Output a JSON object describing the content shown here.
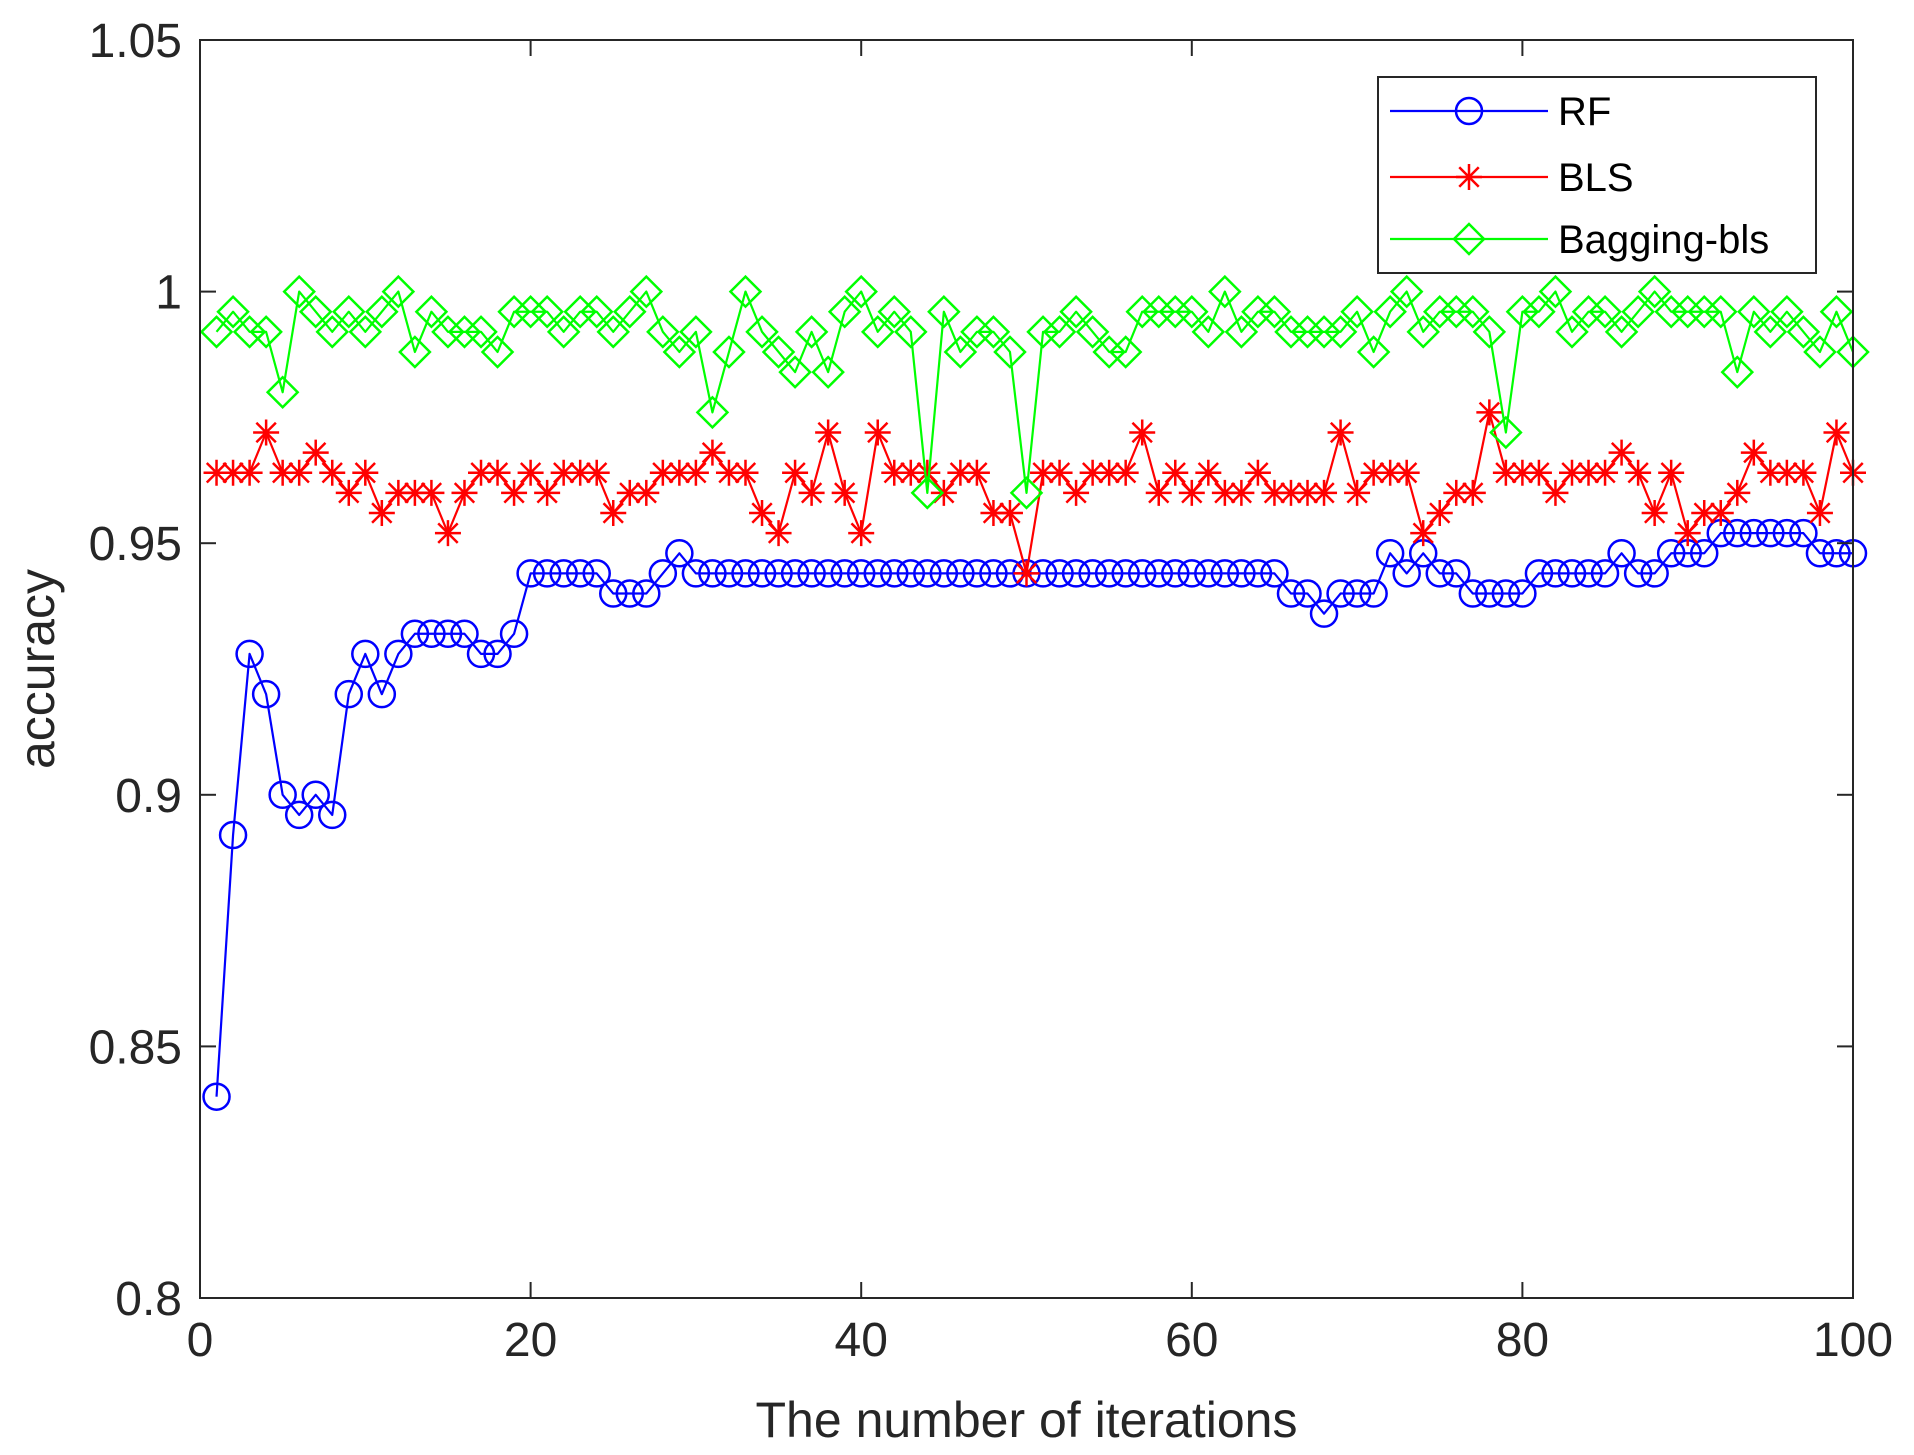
{
  "chart_data": {
    "type": "line",
    "title": "",
    "xlabel": "The number of iterations",
    "ylabel": "accuracy",
    "xlim": [
      0,
      100
    ],
    "ylim": [
      0.8,
      1.05
    ],
    "xticks": [
      0,
      20,
      40,
      60,
      80,
      100
    ],
    "xtick_labels": [
      "0",
      "20",
      "40",
      "60",
      "80",
      "100"
    ],
    "yticks": [
      0.8,
      0.85,
      0.9,
      0.95,
      1.0,
      1.05
    ],
    "ytick_labels": [
      "0.8",
      "0.85",
      "0.9",
      "0.95",
      "1",
      "1.05"
    ],
    "grid": false,
    "legend_position": "top-right",
    "x": [
      1,
      2,
      3,
      4,
      5,
      6,
      7,
      8,
      9,
      10,
      11,
      12,
      13,
      14,
      15,
      16,
      17,
      18,
      19,
      20,
      21,
      22,
      23,
      24,
      25,
      26,
      27,
      28,
      29,
      30,
      31,
      32,
      33,
      34,
      35,
      36,
      37,
      38,
      39,
      40,
      41,
      42,
      43,
      44,
      45,
      46,
      47,
      48,
      49,
      50,
      51,
      52,
      53,
      54,
      55,
      56,
      57,
      58,
      59,
      60,
      61,
      62,
      63,
      64,
      65,
      66,
      67,
      68,
      69,
      70,
      71,
      72,
      73,
      74,
      75,
      76,
      77,
      78,
      79,
      80,
      81,
      82,
      83,
      84,
      85,
      86,
      87,
      88,
      89,
      90,
      91,
      92,
      93,
      94,
      95,
      96,
      97,
      98,
      99,
      100
    ],
    "series": [
      {
        "name": "RF",
        "color": "#0000ff",
        "marker": "circle",
        "values": [
          0.84,
          0.892,
          0.928,
          0.92,
          0.9,
          0.896,
          0.9,
          0.896,
          0.92,
          0.928,
          0.92,
          0.928,
          0.932,
          0.932,
          0.932,
          0.932,
          0.928,
          0.928,
          0.932,
          0.944,
          0.944,
          0.944,
          0.944,
          0.944,
          0.94,
          0.94,
          0.94,
          0.944,
          0.948,
          0.944,
          0.944,
          0.944,
          0.944,
          0.944,
          0.944,
          0.944,
          0.944,
          0.944,
          0.944,
          0.944,
          0.944,
          0.944,
          0.944,
          0.944,
          0.944,
          0.944,
          0.944,
          0.944,
          0.944,
          0.944,
          0.944,
          0.944,
          0.944,
          0.944,
          0.944,
          0.944,
          0.944,
          0.944,
          0.944,
          0.944,
          0.944,
          0.944,
          0.944,
          0.944,
          0.944,
          0.94,
          0.94,
          0.936,
          0.94,
          0.94,
          0.94,
          0.948,
          0.944,
          0.948,
          0.944,
          0.944,
          0.94,
          0.94,
          0.94,
          0.94,
          0.944,
          0.944,
          0.944,
          0.944,
          0.944,
          0.948,
          0.944,
          0.944,
          0.948,
          0.948,
          0.948,
          0.952,
          0.952,
          0.952,
          0.952,
          0.952,
          0.952,
          0.948,
          0.948,
          0.948
        ]
      },
      {
        "name": "BLS",
        "color": "#ff0000",
        "marker": "star",
        "values": [
          0.964,
          0.964,
          0.964,
          0.972,
          0.964,
          0.964,
          0.968,
          0.964,
          0.96,
          0.964,
          0.956,
          0.96,
          0.96,
          0.96,
          0.952,
          0.96,
          0.964,
          0.964,
          0.96,
          0.964,
          0.96,
          0.964,
          0.964,
          0.964,
          0.956,
          0.96,
          0.96,
          0.964,
          0.964,
          0.964,
          0.968,
          0.964,
          0.964,
          0.956,
          0.952,
          0.964,
          0.96,
          0.972,
          0.96,
          0.952,
          0.972,
          0.964,
          0.964,
          0.964,
          0.96,
          0.964,
          0.964,
          0.956,
          0.956,
          0.944,
          0.964,
          0.964,
          0.96,
          0.964,
          0.964,
          0.964,
          0.972,
          0.96,
          0.964,
          0.96,
          0.964,
          0.96,
          0.96,
          0.964,
          0.96,
          0.96,
          0.96,
          0.96,
          0.972,
          0.96,
          0.964,
          0.964,
          0.964,
          0.952,
          0.956,
          0.96,
          0.96,
          0.976,
          0.964,
          0.964,
          0.964,
          0.96,
          0.964,
          0.964,
          0.964,
          0.968,
          0.964,
          0.956,
          0.964,
          0.952,
          0.956,
          0.956,
          0.96,
          0.968,
          0.964,
          0.964,
          0.964,
          0.956,
          0.972,
          0.964
        ]
      },
      {
        "name": "Bagging-bls",
        "color": "#00ff00",
        "marker": "diamond",
        "values": [
          0.992,
          0.996,
          0.992,
          0.992,
          0.98,
          1.0,
          0.996,
          0.992,
          0.996,
          0.992,
          0.996,
          1.0,
          0.988,
          0.996,
          0.992,
          0.992,
          0.992,
          0.988,
          0.996,
          0.996,
          0.996,
          0.992,
          0.996,
          0.996,
          0.992,
          0.996,
          1.0,
          0.992,
          0.988,
          0.992,
          0.976,
          0.988,
          1.0,
          0.992,
          0.988,
          0.984,
          0.992,
          0.984,
          0.996,
          1.0,
          0.992,
          0.996,
          0.992,
          0.96,
          0.996,
          0.988,
          0.992,
          0.992,
          0.988,
          0.96,
          0.992,
          0.992,
          0.996,
          0.992,
          0.988,
          0.988,
          0.996,
          0.996,
          0.996,
          0.996,
          0.992,
          1.0,
          0.992,
          0.996,
          0.996,
          0.992,
          0.992,
          0.992,
          0.992,
          0.996,
          0.988,
          0.996,
          1.0,
          0.992,
          0.996,
          0.996,
          0.996,
          0.992,
          0.972,
          0.996,
          0.996,
          1.0,
          0.992,
          0.996,
          0.996,
          0.992,
          0.996,
          1.0,
          0.996,
          0.996,
          0.996,
          0.996,
          0.984,
          0.996,
          0.992,
          0.996,
          0.992,
          0.988,
          0.996,
          0.988
        ]
      }
    ]
  }
}
